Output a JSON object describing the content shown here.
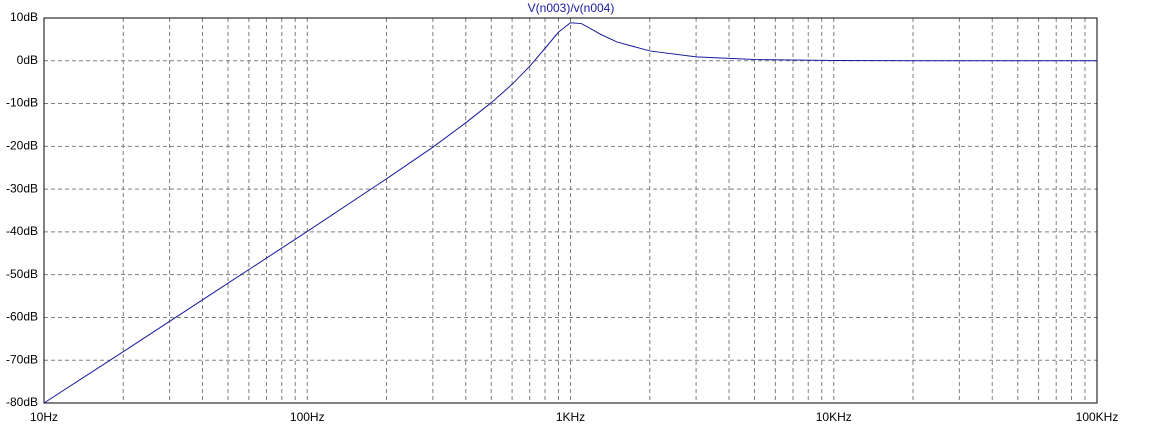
{
  "chart_data": {
    "type": "line",
    "title": "V(n003)/v(n004)",
    "xscale": "log",
    "grid": true,
    "xlim": [
      10,
      100000
    ],
    "ylim": [
      -80,
      10
    ],
    "xticks": [
      {
        "value": 10,
        "label": "10Hz"
      },
      {
        "value": 100,
        "label": "100Hz"
      },
      {
        "value": 1000,
        "label": "1KHz"
      },
      {
        "value": 10000,
        "label": "10KHz"
      },
      {
        "value": 100000,
        "label": "100KHz"
      }
    ],
    "xminorticks": [
      20,
      30,
      40,
      50,
      60,
      70,
      80,
      90,
      200,
      300,
      400,
      500,
      600,
      700,
      800,
      900,
      2000,
      3000,
      4000,
      5000,
      6000,
      7000,
      8000,
      9000,
      20000,
      30000,
      40000,
      50000,
      60000,
      70000,
      80000,
      90000
    ],
    "yticks": [
      {
        "value": 10,
        "label": "10dB"
      },
      {
        "value": 0,
        "label": "0dB"
      },
      {
        "value": -10,
        "label": "-10dB"
      },
      {
        "value": -20,
        "label": "-20dB"
      },
      {
        "value": -30,
        "label": "-30dB"
      },
      {
        "value": -40,
        "label": "-40dB"
      },
      {
        "value": -50,
        "label": "-50dB"
      },
      {
        "value": -60,
        "label": "-60dB"
      },
      {
        "value": -70,
        "label": "-70dB"
      },
      {
        "value": -80,
        "label": "-80dB"
      }
    ],
    "x": [
      10,
      20,
      50,
      100,
      200,
      300,
      400,
      500,
      600,
      700,
      800,
      900,
      1000,
      1100,
      1200,
      1300,
      1500,
      2000,
      3000,
      5000,
      10000,
      20000,
      50000,
      100000
    ],
    "series": [
      {
        "name": "V(n003)/v(n004)",
        "color": "#1a1a9c",
        "values": [
          -80,
          -68,
          -52,
          -39.9,
          -27.6,
          -20.2,
          -14.5,
          -9.8,
          -5.5,
          -1.3,
          2.9,
          6.7,
          8.9,
          8.7,
          7.4,
          6.2,
          4.4,
          2.3,
          0.9,
          0.3,
          0.08,
          0.02,
          0,
          0
        ]
      }
    ]
  }
}
